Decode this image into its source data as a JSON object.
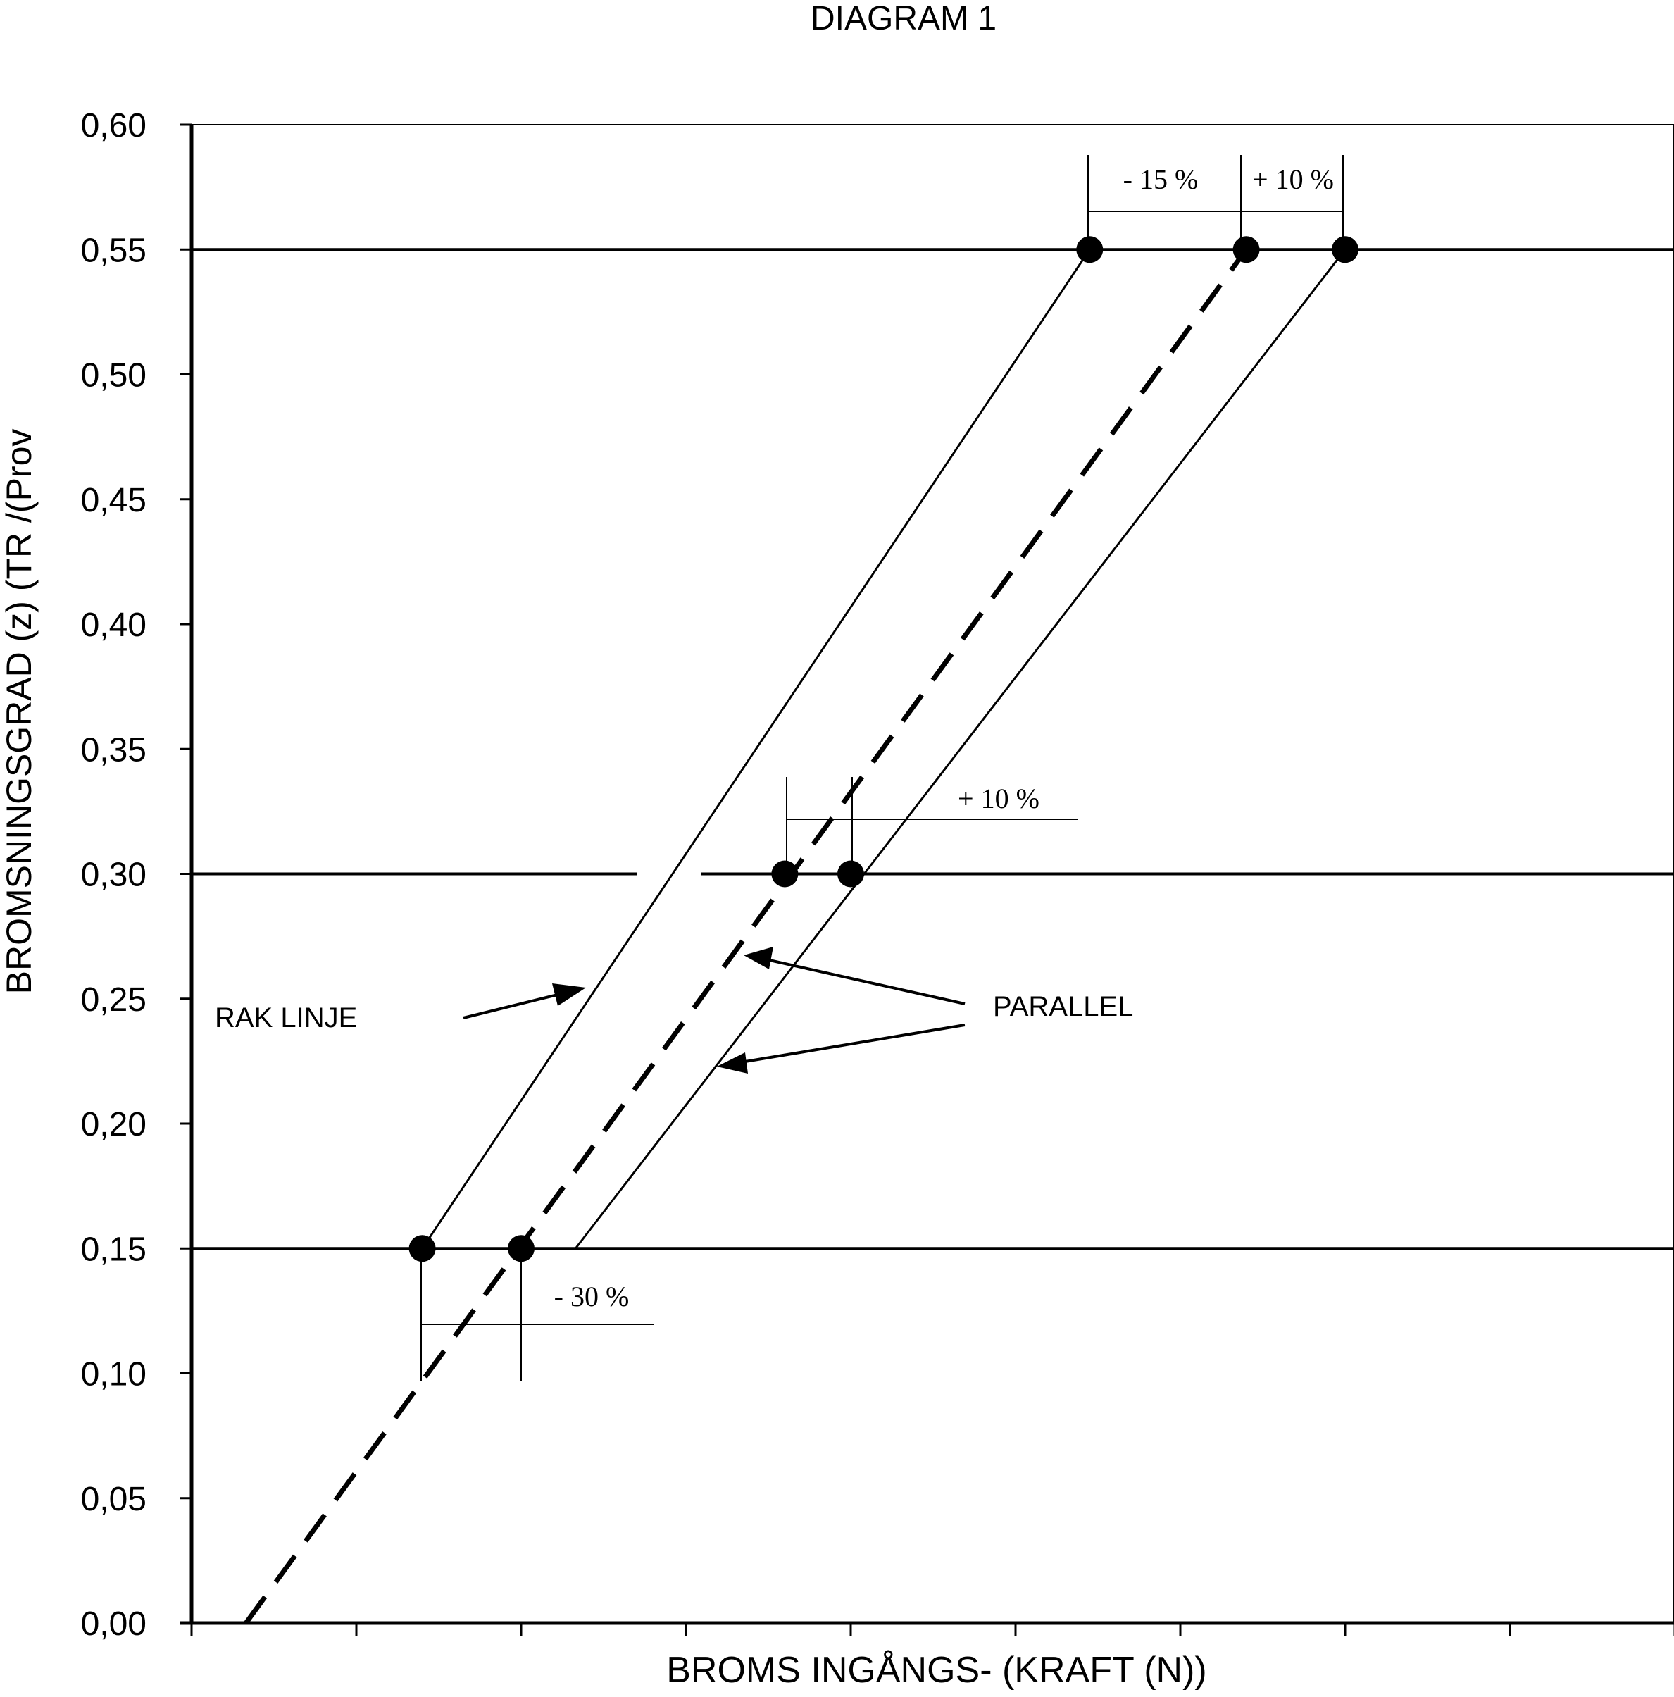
{
  "chart_data": {
    "type": "line",
    "title": "DIAGRAM 1",
    "xlabel": "BROMS INGÅNGS- (KRAFT (N))",
    "ylabel": "BROMSNINGSGRAD (z) (TR /(Prov",
    "x_unit_note": "x axis has no numeric tick labels; x values are in tick-interval units (tick marks at 0..9)",
    "xlim": [
      0,
      9
    ],
    "ylim": [
      0,
      0.6
    ],
    "y_ticks": [
      "0,00",
      "0,05",
      "0,10",
      "0,15",
      "0,20",
      "0,25",
      "0,30",
      "0,35",
      "0,40",
      "0,45",
      "0,50",
      "0,55",
      "0,60"
    ],
    "x_tick_count": 10,
    "reference_lines_y": [
      0.15,
      0.3,
      0.55
    ],
    "series": [
      {
        "style": "solid",
        "points": [
          [
            1.4,
            0.15
          ],
          [
            5.45,
            0.55
          ]
        ]
      },
      {
        "style": "dashed",
        "points": [
          [
            0.33,
            0.0
          ],
          [
            6.4,
            0.55
          ]
        ]
      },
      {
        "style": "solid",
        "points": [
          [
            2.33,
            0.15
          ],
          [
            7.0,
            0.55
          ]
        ]
      }
    ],
    "markers": [
      {
        "x": 1.4,
        "y": 0.15
      },
      {
        "x": 2.0,
        "y": 0.15
      },
      {
        "x": 3.6,
        "y": 0.3
      },
      {
        "x": 4.0,
        "y": 0.3
      },
      {
        "x": 5.45,
        "y": 0.55
      },
      {
        "x": 6.4,
        "y": 0.55
      },
      {
        "x": 7.0,
        "y": 0.55
      }
    ],
    "annotations": {
      "pct_minus_15": "- 15 %",
      "pct_plus_10_top": "+ 10 %",
      "pct_plus_10_mid": "+ 10 %",
      "pct_minus_30": "- 30 %",
      "rak_linje": "RAK LINJE",
      "parallel": "PARALLEL"
    }
  }
}
